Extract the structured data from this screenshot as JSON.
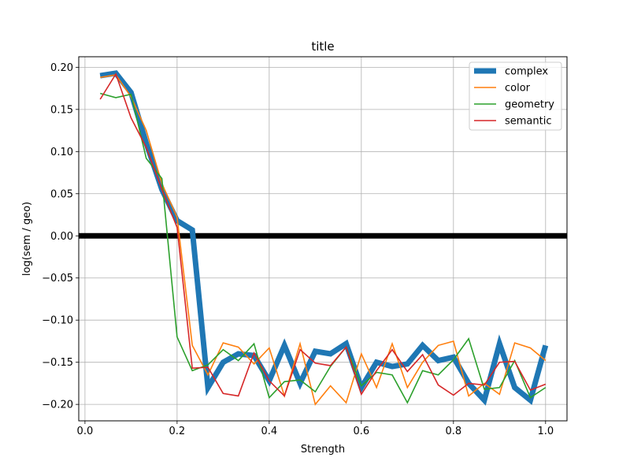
{
  "chart_data": {
    "type": "line",
    "title": "title",
    "xlabel": "Strength",
    "ylabel": "log(sem / geo)",
    "xlim": [
      -0.0135,
      1.0465
    ],
    "ylim": [
      -0.2195,
      0.2125
    ],
    "xticks": [
      0.0,
      0.2,
      0.4,
      0.6,
      0.8,
      1.0
    ],
    "xtick_labels": [
      "0.0",
      "0.2",
      "0.4",
      "0.6",
      "0.8",
      "1.0"
    ],
    "yticks": [
      -0.2,
      -0.15,
      -0.1,
      -0.05,
      0.0,
      0.05,
      0.1,
      0.15,
      0.2
    ],
    "ytick_labels": [
      "−0.20",
      "−0.15",
      "−0.10",
      "−0.05",
      "0.00",
      "0.05",
      "0.10",
      "0.15",
      "0.20"
    ],
    "grid": true,
    "legend_position": "top-right",
    "hline": 0.0,
    "x": [
      0.033,
      0.067,
      0.1,
      0.133,
      0.167,
      0.2,
      0.233,
      0.267,
      0.3,
      0.333,
      0.367,
      0.4,
      0.433,
      0.467,
      0.5,
      0.533,
      0.567,
      0.6,
      0.633,
      0.667,
      0.7,
      0.733,
      0.767,
      0.8,
      0.833,
      0.867,
      0.9,
      0.933,
      0.967,
      1.0
    ],
    "series": [
      {
        "name": "complex",
        "color": "#1f77b4",
        "line_style": "thick",
        "values": [
          0.19,
          0.193,
          0.17,
          0.11,
          0.055,
          0.018,
          0.007,
          -0.18,
          -0.15,
          -0.14,
          -0.142,
          -0.172,
          -0.13,
          -0.175,
          -0.137,
          -0.14,
          -0.128,
          -0.18,
          -0.15,
          -0.155,
          -0.152,
          -0.13,
          -0.148,
          -0.144,
          -0.175,
          -0.195,
          -0.128,
          -0.18,
          -0.195,
          -0.13
        ]
      },
      {
        "name": "color",
        "color": "#ff7f0e",
        "line_style": "normal",
        "values": [
          0.188,
          0.191,
          0.165,
          0.125,
          0.062,
          0.022,
          -0.13,
          -0.165,
          -0.127,
          -0.132,
          -0.152,
          -0.133,
          -0.19,
          -0.128,
          -0.2,
          -0.178,
          -0.198,
          -0.14,
          -0.18,
          -0.128,
          -0.18,
          -0.15,
          -0.13,
          -0.125,
          -0.19,
          -0.175,
          -0.188,
          -0.127,
          -0.133,
          -0.148
        ]
      },
      {
        "name": "geometry",
        "color": "#2ca02c",
        "line_style": "normal",
        "values": [
          0.169,
          0.164,
          0.168,
          0.092,
          0.068,
          -0.12,
          -0.16,
          -0.153,
          -0.135,
          -0.148,
          -0.128,
          -0.192,
          -0.173,
          -0.171,
          -0.185,
          -0.155,
          -0.132,
          -0.178,
          -0.162,
          -0.165,
          -0.198,
          -0.16,
          -0.165,
          -0.147,
          -0.122,
          -0.182,
          -0.18,
          -0.148,
          -0.192,
          -0.18
        ]
      },
      {
        "name": "semantic",
        "color": "#d62728",
        "line_style": "normal",
        "values": [
          0.162,
          0.192,
          0.14,
          0.105,
          0.055,
          0.01,
          -0.157,
          -0.156,
          -0.187,
          -0.19,
          -0.139,
          -0.172,
          -0.19,
          -0.135,
          -0.151,
          -0.154,
          -0.132,
          -0.188,
          -0.16,
          -0.135,
          -0.161,
          -0.141,
          -0.177,
          -0.189,
          -0.175,
          -0.177,
          -0.15,
          -0.149,
          -0.183,
          -0.176
        ]
      }
    ]
  }
}
